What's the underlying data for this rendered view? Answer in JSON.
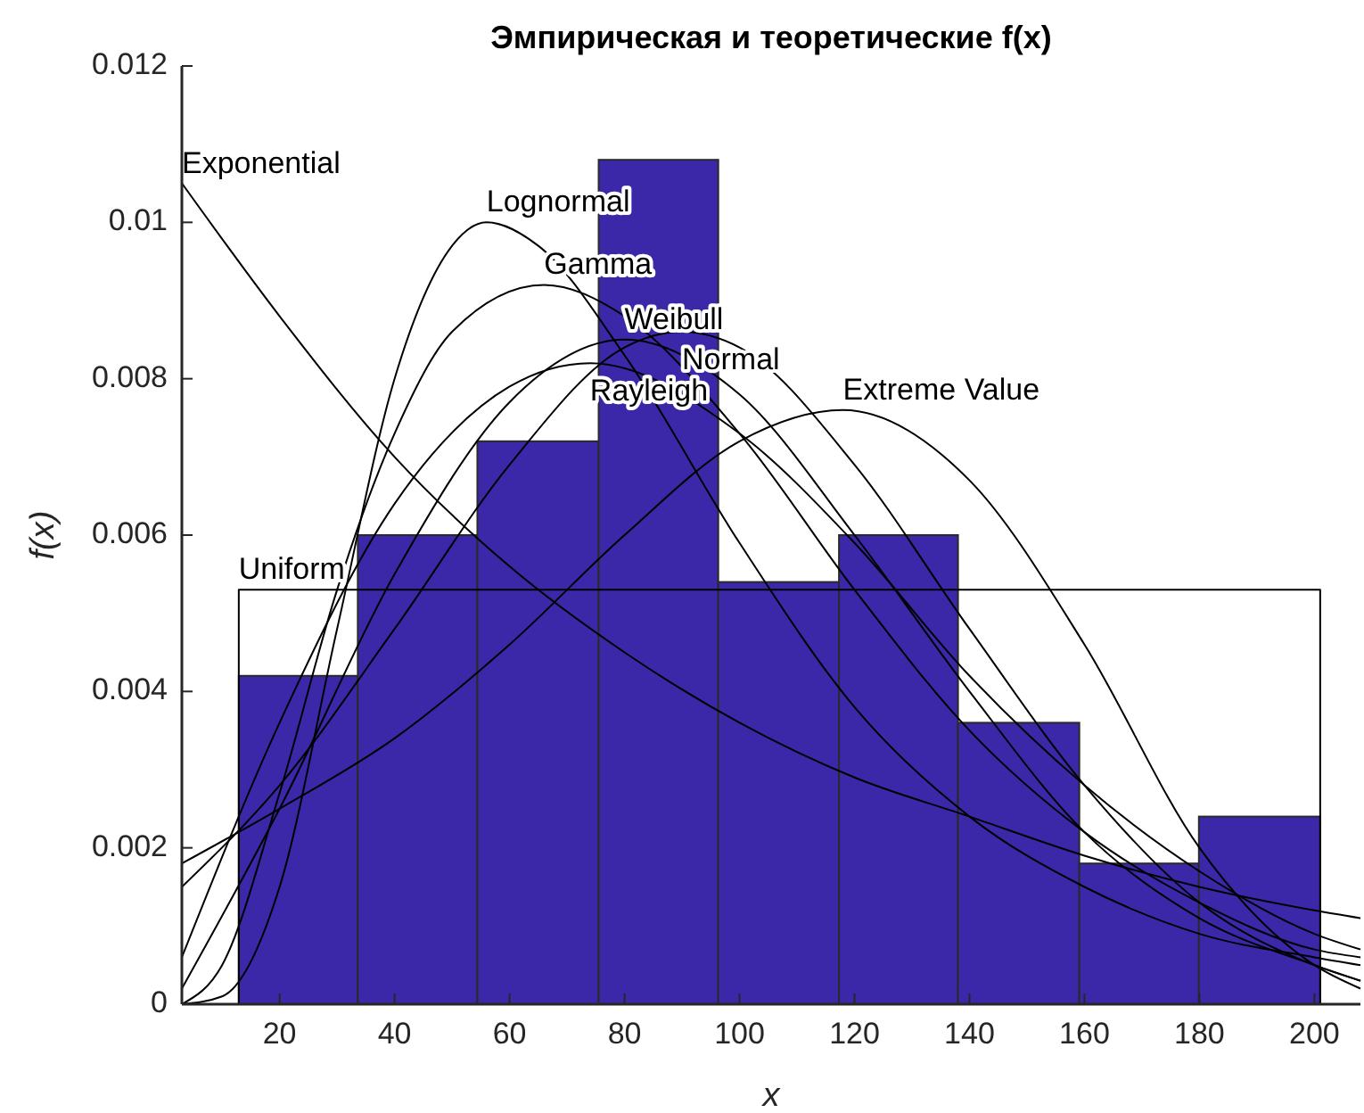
{
  "chart_data": {
    "type": "histogram",
    "title": "Эмпирическая и теоретические f(x)",
    "xlabel": "x",
    "ylabel": "f(x)",
    "bins": [
      12.9,
      33.6,
      54.4,
      75.5,
      96.3,
      117.3,
      138,
      159.1,
      179.9,
      201
    ],
    "values": [
      0.0042,
      0.006,
      0.0072,
      0.0108,
      0.0054,
      0.006,
      0.0036,
      0.0018,
      0.0024
    ],
    "color": "#3b28a8",
    "series": [
      {
        "type": "line",
        "name": "Exponential",
        "color": "#000000",
        "x": [
          3,
          20,
          40,
          60,
          80,
          100,
          120,
          140,
          160,
          180,
          200,
          208
        ],
        "values": [
          0.0105,
          0.0088,
          0.007,
          0.0056,
          0.0045,
          0.0036,
          0.0029,
          0.0024,
          0.0019,
          0.0015,
          0.0012,
          0.0011
        ]
      },
      {
        "type": "line",
        "name": "Lognormal",
        "color": "#000000",
        "x": [
          3,
          10,
          20,
          30,
          40,
          50,
          56,
          65,
          80,
          100,
          120,
          140,
          160,
          180,
          200,
          208
        ],
        "values": [
          0,
          0.0001,
          0.0015,
          0.0048,
          0.008,
          0.0097,
          0.01,
          0.0097,
          0.0083,
          0.0059,
          0.0038,
          0.0024,
          0.0015,
          0.0009,
          0.0006,
          0.0005
        ]
      },
      {
        "type": "line",
        "name": "Gamma",
        "color": "#000000",
        "x": [
          3,
          10,
          20,
          30,
          40,
          50,
          66,
          80,
          100,
          120,
          140,
          160,
          180,
          200,
          208
        ],
        "values": [
          0,
          0.0005,
          0.0027,
          0.0053,
          0.0073,
          0.0086,
          0.0092,
          0.0088,
          0.0073,
          0.0053,
          0.0035,
          0.0022,
          0.0013,
          0.0007,
          0.0006
        ]
      },
      {
        "type": "line",
        "name": "Weibull",
        "color": "#000000",
        "x": [
          3,
          20,
          40,
          60,
          80,
          100,
          120,
          140,
          160,
          180,
          200,
          208
        ],
        "values": [
          0.0002,
          0.0025,
          0.0055,
          0.0077,
          0.0085,
          0.0078,
          0.006,
          0.004,
          0.0022,
          0.0011,
          0.0005,
          0.0003
        ]
      },
      {
        "type": "line",
        "name": "Normal",
        "color": "#000000",
        "x": [
          3,
          20,
          40,
          60,
          80,
          90,
          100,
          120,
          140,
          160,
          180,
          200,
          208
        ],
        "values": [
          0.0015,
          0.0028,
          0.0048,
          0.0069,
          0.0084,
          0.0086,
          0.0084,
          0.0069,
          0.0048,
          0.0028,
          0.0013,
          0.0005,
          0.0003
        ]
      },
      {
        "type": "line",
        "name": "Rayleigh",
        "color": "#000000",
        "x": [
          3,
          20,
          40,
          60,
          74,
          100,
          120,
          140,
          160,
          180,
          200,
          208
        ],
        "values": [
          0.0006,
          0.0036,
          0.0064,
          0.0079,
          0.0082,
          0.0073,
          0.0059,
          0.0042,
          0.0028,
          0.0017,
          0.0009,
          0.0007
        ]
      },
      {
        "type": "line",
        "name": "Extreme Value",
        "color": "#000000",
        "x": [
          3,
          20,
          40,
          60,
          80,
          100,
          118,
          140,
          160,
          180,
          200,
          208
        ],
        "values": [
          0.0018,
          0.0025,
          0.0034,
          0.0046,
          0.006,
          0.0072,
          0.0076,
          0.0067,
          0.0046,
          0.002,
          0.0005,
          0.0002
        ]
      },
      {
        "type": "line",
        "name": "Uniform",
        "color": "#000000",
        "x": [
          12.9,
          12.9,
          201,
          201
        ],
        "values": [
          0,
          0.0053,
          0.0053,
          0
        ]
      }
    ],
    "xlim": [
      3,
      208
    ],
    "xticks": [
      20,
      40,
      60,
      80,
      100,
      120,
      140,
      160,
      180,
      200
    ],
    "ylim": [
      0,
      0.012
    ],
    "yticks": [
      0,
      0.002,
      0.004,
      0.006,
      0.008,
      0.01,
      0.012
    ],
    "grid": false
  }
}
